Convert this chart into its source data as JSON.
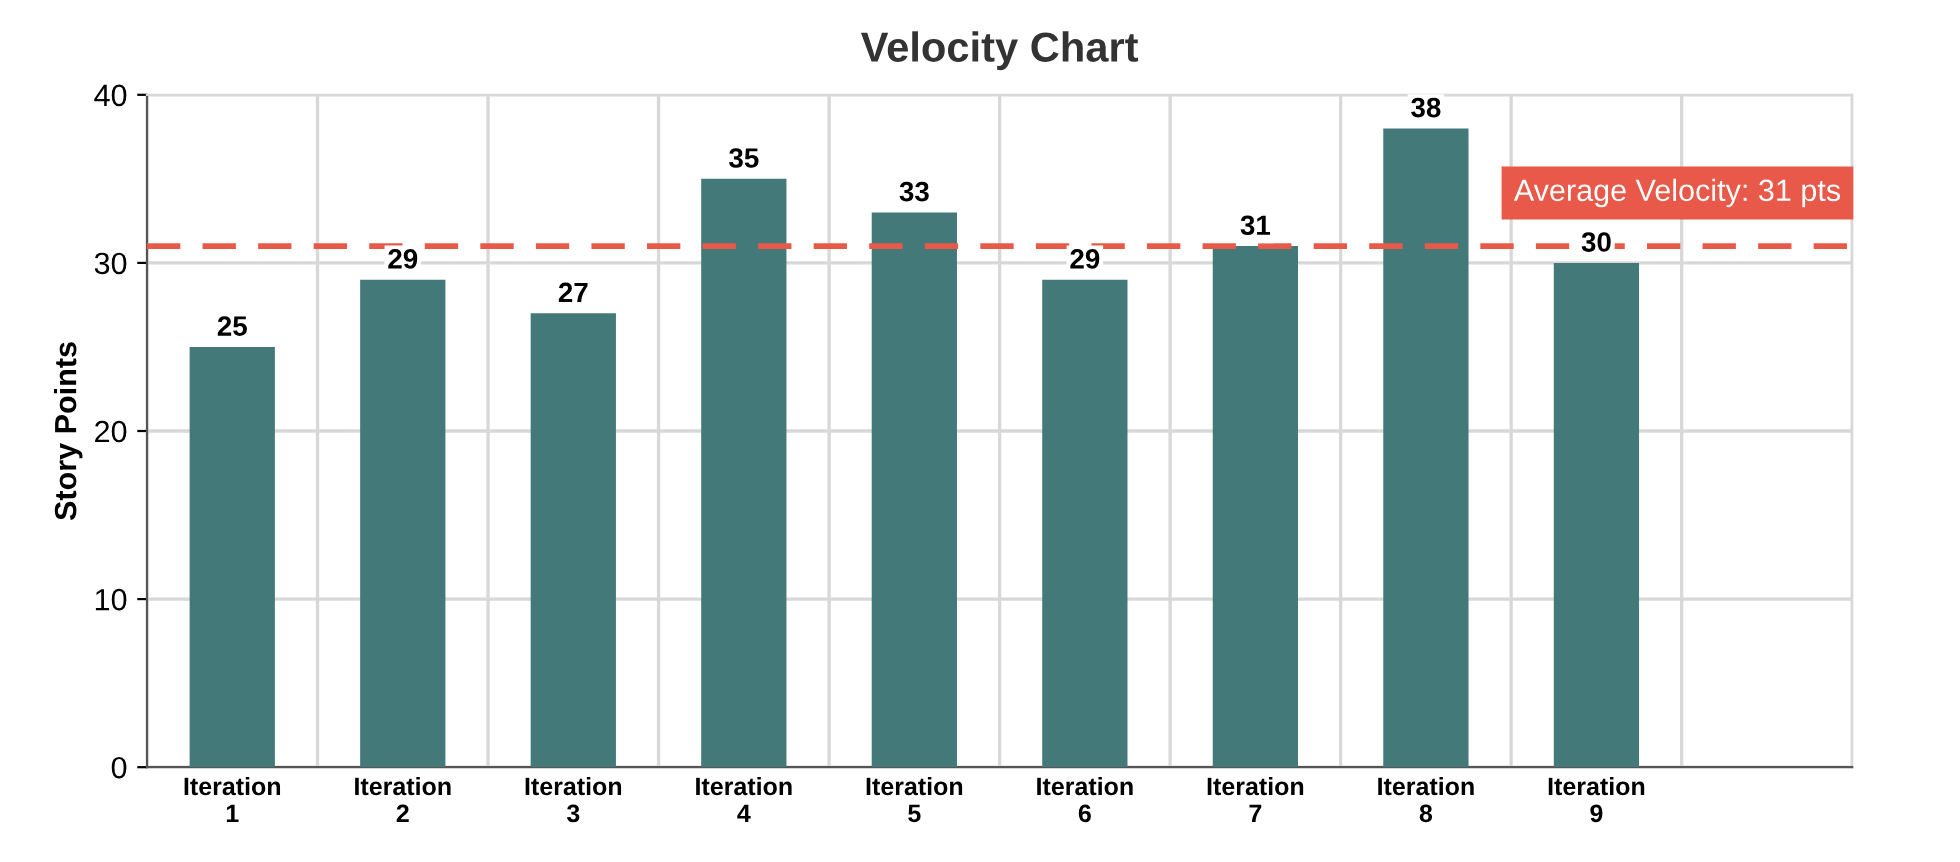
{
  "chart_data": {
    "type": "bar",
    "title": "Velocity Chart",
    "ylabel": "Story Points",
    "categories": [
      "Iteration\n1",
      "Iteration\n2",
      "Iteration\n3",
      "Iteration\n4",
      "Iteration\n5",
      "Iteration\n6",
      "Iteration\n7",
      "Iteration\n8",
      "Iteration\n9",
      null
    ],
    "values": [
      25,
      29,
      27,
      35,
      33,
      29,
      31,
      38,
      30,
      null
    ],
    "color": "#44797a",
    "data_labels": true,
    "ylim": [
      0,
      40
    ],
    "yticks": [
      0,
      10,
      20,
      30,
      40
    ],
    "grid": true,
    "ref_lines": [
      {
        "axis": "y",
        "value": 31,
        "label": "Average Velocity: 31 pts",
        "color": "#e8594a",
        "line_style": "dashed"
      }
    ]
  }
}
